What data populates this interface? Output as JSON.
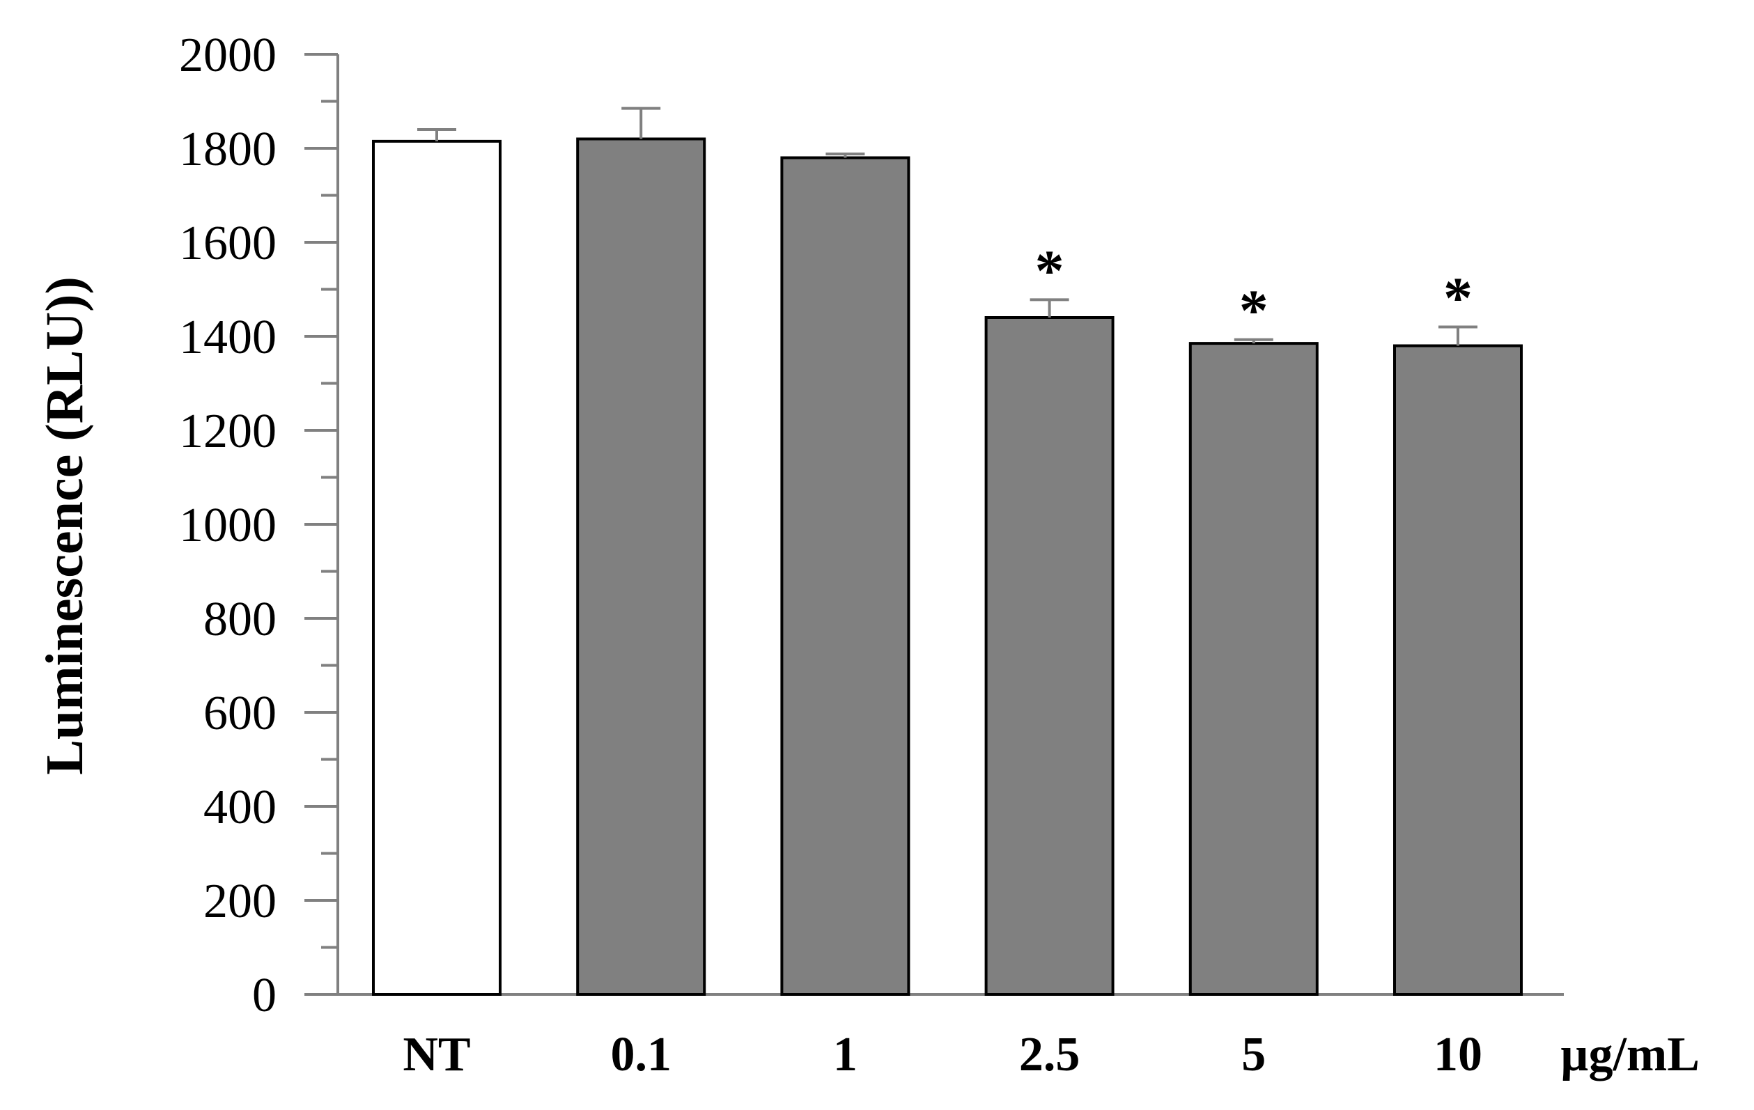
{
  "chart_data": {
    "type": "bar",
    "title": "",
    "ylabel": "Luminescence (RLU))",
    "xlabel": "",
    "x_unit_label": "µg/mL",
    "ylim": [
      0,
      2000
    ],
    "y_major_ticks": [
      0,
      200,
      400,
      600,
      800,
      1000,
      1200,
      1400,
      1600,
      1800,
      2000
    ],
    "y_minor_step": 100,
    "categories": [
      "NT",
      "0.1",
      "1",
      "2.5",
      "5",
      "10"
    ],
    "values": [
      1815,
      1820,
      1780,
      1440,
      1385,
      1380
    ],
    "errors": [
      25,
      65,
      8,
      38,
      8,
      40
    ],
    "significance": [
      "",
      "",
      "",
      "*",
      "*",
      "*"
    ],
    "bar_colors": [
      "#ffffff",
      "#808080",
      "#808080",
      "#808080",
      "#808080",
      "#808080"
    ],
    "bar_edge_color": "#000000",
    "axis_color": "#808080",
    "grid": false,
    "legend": "none"
  }
}
